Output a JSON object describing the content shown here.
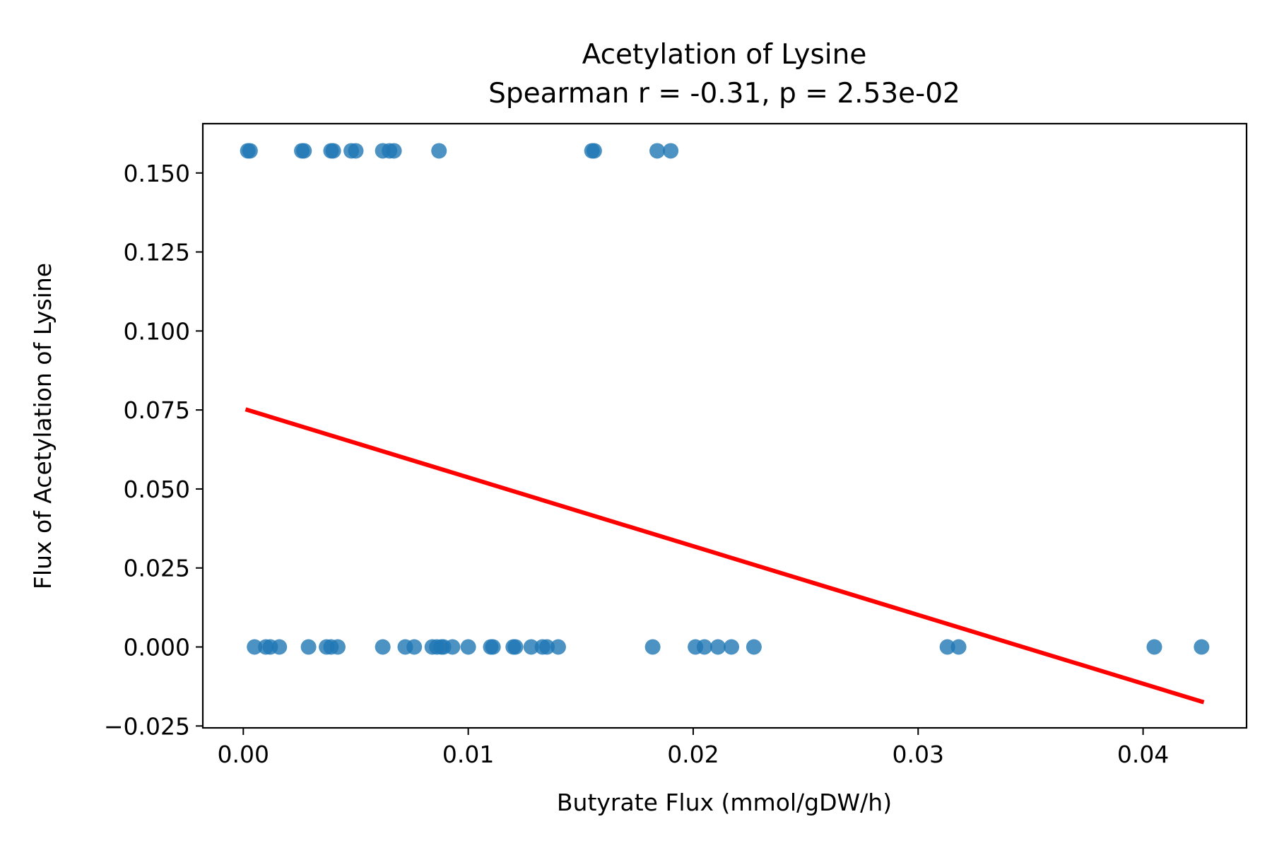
{
  "chart_data": {
    "type": "scatter",
    "title": "Acetylation of Lysine",
    "subtitle": "Spearman r = -0.31, p = 2.53e-02",
    "xlabel": "Butyrate Flux (mmol/gDW/h)",
    "ylabel": "Flux of Acetylation of Lysine",
    "xlim": [
      -0.0018,
      0.0446
    ],
    "ylim": [
      -0.0256,
      0.1656
    ],
    "x_ticks": [
      {
        "value": 0.0,
        "label": "0.00"
      },
      {
        "value": 0.01,
        "label": "0.01"
      },
      {
        "value": 0.02,
        "label": "0.02"
      },
      {
        "value": 0.03,
        "label": "0.03"
      },
      {
        "value": 0.04,
        "label": "0.04"
      }
    ],
    "y_ticks": [
      {
        "value": -0.025,
        "label": "−0.025"
      },
      {
        "value": 0.0,
        "label": "0.000"
      },
      {
        "value": 0.025,
        "label": "0.025"
      },
      {
        "value": 0.05,
        "label": "0.050"
      },
      {
        "value": 0.075,
        "label": "0.075"
      },
      {
        "value": 0.1,
        "label": "0.100"
      },
      {
        "value": 0.125,
        "label": "0.125"
      },
      {
        "value": 0.15,
        "label": "0.150"
      }
    ],
    "grid": false,
    "colors": {
      "points": "#1f77b4",
      "fit_line": "#ff0000"
    },
    "series": [
      {
        "type": "scatter",
        "points": [
          [
            0.0002,
            0.157
          ],
          [
            0.0003,
            0.157
          ],
          [
            0.0026,
            0.157
          ],
          [
            0.0027,
            0.157
          ],
          [
            0.0039,
            0.157
          ],
          [
            0.004,
            0.157
          ],
          [
            0.0048,
            0.157
          ],
          [
            0.005,
            0.157
          ],
          [
            0.0062,
            0.157
          ],
          [
            0.0065,
            0.157
          ],
          [
            0.0067,
            0.157
          ],
          [
            0.0087,
            0.157
          ],
          [
            0.0155,
            0.157
          ],
          [
            0.0156,
            0.157
          ],
          [
            0.0184,
            0.157
          ],
          [
            0.019,
            0.157
          ],
          [
            0.0005,
            0.0
          ],
          [
            0.001,
            0.0
          ],
          [
            0.0012,
            0.0
          ],
          [
            0.0016,
            0.0
          ],
          [
            0.0029,
            0.0
          ],
          [
            0.0037,
            0.0
          ],
          [
            0.0039,
            0.0
          ],
          [
            0.0042,
            0.0
          ],
          [
            0.0062,
            0.0
          ],
          [
            0.0072,
            0.0
          ],
          [
            0.0076,
            0.0
          ],
          [
            0.0084,
            0.0
          ],
          [
            0.0086,
            0.0
          ],
          [
            0.0088,
            0.0
          ],
          [
            0.0089,
            0.0
          ],
          [
            0.0093,
            0.0
          ],
          [
            0.01,
            0.0
          ],
          [
            0.011,
            0.0
          ],
          [
            0.0111,
            0.0
          ],
          [
            0.012,
            0.0
          ],
          [
            0.0121,
            0.0
          ],
          [
            0.0128,
            0.0
          ],
          [
            0.0133,
            0.0
          ],
          [
            0.0135,
            0.0
          ],
          [
            0.014,
            0.0
          ],
          [
            0.0182,
            0.0
          ],
          [
            0.0201,
            0.0
          ],
          [
            0.0205,
            0.0
          ],
          [
            0.0211,
            0.0
          ],
          [
            0.0217,
            0.0
          ],
          [
            0.0227,
            0.0
          ],
          [
            0.0313,
            0.0
          ],
          [
            0.0318,
            0.0
          ],
          [
            0.0405,
            0.0
          ],
          [
            0.0426,
            0.0
          ]
        ]
      },
      {
        "type": "line",
        "x": [
          0.0001,
          0.0427
        ],
        "y": [
          0.0752,
          -0.0175
        ]
      }
    ]
  }
}
